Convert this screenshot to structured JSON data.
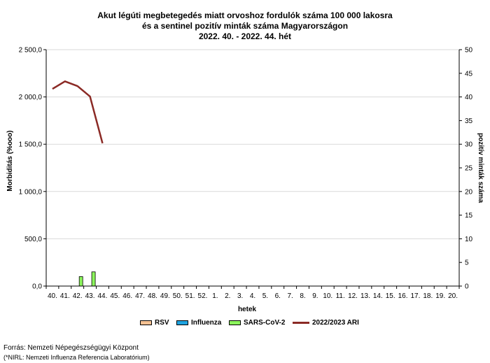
{
  "title_lines": [
    "Akut légúti megbetegedés miatt orvoshoz fordulók száma 100 000 lakosra",
    "és a sentinel pozitív minták száma Magyarországon",
    "2022. 40. - 2022. 44. hét"
  ],
  "footer": {
    "source": "Forrás: Nemzeti Népegészségügyi Központ",
    "note": "(*NIRL: Nemzeti Influenza Referencia Laboratórium)"
  },
  "colors": {
    "rsv": "#f5c193",
    "influenza": "#1fa3e0",
    "sars": "#8cf55c",
    "ari": "#8b2a25",
    "grid": "#d9d9d9"
  },
  "chart_data": {
    "type": "bar+line",
    "xlabel": "hetek",
    "ylabel_left": "Morbiditás (%ooo)",
    "ylabel_right": "pozitív minták száma",
    "ylim_left": [
      0,
      2500
    ],
    "ylim_right": [
      0,
      50
    ],
    "yticks_left": [
      "0,0",
      "500,0",
      "1 000,0",
      "1 500,0",
      "2 000,0",
      "2 500,0"
    ],
    "yticks_right": [
      "0",
      "5",
      "10",
      "15",
      "20",
      "25",
      "30",
      "35",
      "40",
      "45",
      "50"
    ],
    "grid": true,
    "legend_position": "bottom",
    "categories": [
      "40.",
      "41.",
      "42.",
      "43.",
      "44.",
      "45.",
      "46.",
      "47.",
      "48.",
      "49.",
      "50.",
      "51.",
      "52.",
      "1.",
      "2.",
      "3.",
      "4.",
      "5.",
      "6.",
      "7.",
      "8.",
      "9.",
      "10.",
      "11.",
      "12.",
      "13.",
      "14.",
      "15.",
      "16.",
      "17.",
      "18.",
      "19.",
      "20."
    ],
    "bar_series": [
      {
        "name": "RSV",
        "axis": "right",
        "values": [
          0,
          0,
          0,
          0,
          0
        ]
      },
      {
        "name": "Influenza",
        "axis": "right",
        "values": [
          0,
          0,
          0,
          0,
          0
        ]
      },
      {
        "name": "SARS-CoV-2",
        "axis": "right",
        "values": [
          0,
          0,
          2,
          3,
          0
        ]
      }
    ],
    "line_series": [
      {
        "name": "2022/2023 ARI",
        "axis": "left",
        "values": [
          2085,
          2165,
          2115,
          2005,
          1510
        ]
      }
    ]
  }
}
